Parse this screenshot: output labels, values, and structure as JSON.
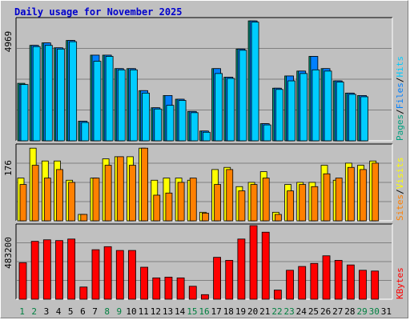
{
  "title": "Daily usage for November 2025",
  "colors": {
    "pages": "#00a080",
    "files": "#0080ff",
    "hits": "#00ccff",
    "visits": "#ffff00",
    "sites": "#ff8000",
    "kbytes": "#ff0000",
    "weekend": "#008040",
    "weekday": "#000000"
  },
  "chart_data": [
    {
      "type": "bar",
      "panel": "hits-files-pages",
      "y_max_label": "4969",
      "ylim": [
        0,
        4969
      ],
      "side_label": {
        "pages": "Pages",
        "files": "Files",
        "hits": "Hits",
        "sep": "/"
      },
      "categories": [
        "1",
        "2",
        "3",
        "4",
        "5",
        "6",
        "7",
        "8",
        "9",
        "10",
        "11",
        "12",
        "13",
        "14",
        "15",
        "16",
        "17",
        "18",
        "19",
        "20",
        "21",
        "22",
        "23",
        "24",
        "25",
        "26",
        "27",
        "28",
        "29",
        "30",
        "31"
      ],
      "series": [
        {
          "name": "Pages",
          "values": [
            2350,
            3900,
            4000,
            3800,
            4100,
            800,
            3500,
            3500,
            2950,
            2950,
            2050,
            1350,
            1850,
            1700,
            1200,
            400,
            2950,
            2600,
            3750,
            4900,
            700,
            2150,
            2650,
            2850,
            3450,
            2950,
            2450,
            1950,
            1850,
            0,
            0
          ]
        },
        {
          "name": "Files",
          "values": [
            2300,
            3900,
            4000,
            3800,
            4100,
            800,
            3500,
            3500,
            2950,
            2950,
            2050,
            1350,
            1850,
            1700,
            1200,
            400,
            2950,
            2600,
            3750,
            4900,
            700,
            2150,
            2650,
            2850,
            3450,
            2950,
            2450,
            1950,
            1850,
            0,
            0
          ]
        },
        {
          "name": "Hits",
          "values": [
            2300,
            3850,
            3900,
            3750,
            4050,
            750,
            3250,
            3450,
            2900,
            2900,
            1950,
            1300,
            1450,
            1650,
            1150,
            350,
            2750,
            2550,
            3700,
            4850,
            650,
            2100,
            2450,
            2750,
            2900,
            2850,
            2400,
            1900,
            1800,
            0,
            0
          ]
        }
      ]
    },
    {
      "type": "bar",
      "panel": "visits-sites",
      "y_max_label": "176",
      "ylim": [
        0,
        176
      ],
      "side_label": {
        "sites": "Sites",
        "visits": "Visits",
        "sep": "/"
      },
      "categories": [
        "1",
        "2",
        "3",
        "4",
        "5",
        "6",
        "7",
        "8",
        "9",
        "10",
        "11",
        "12",
        "13",
        "14",
        "15",
        "16",
        "17",
        "18",
        "19",
        "20",
        "21",
        "22",
        "23",
        "24",
        "25",
        "26",
        "27",
        "28",
        "29",
        "30",
        "31"
      ],
      "series": [
        {
          "name": "Visits",
          "values": [
            100,
            170,
            140,
            140,
            95,
            15,
            100,
            145,
            150,
            150,
            170,
            95,
            100,
            100,
            95,
            20,
            120,
            125,
            80,
            90,
            115,
            20,
            85,
            90,
            90,
            130,
            95,
            135,
            130,
            140,
            0
          ]
        },
        {
          "name": "Sites",
          "values": [
            85,
            130,
            100,
            120,
            90,
            15,
            100,
            130,
            150,
            130,
            170,
            60,
            65,
            90,
            100,
            18,
            85,
            120,
            70,
            85,
            100,
            15,
            70,
            85,
            80,
            110,
            100,
            125,
            120,
            135,
            0
          ]
        }
      ]
    },
    {
      "type": "bar",
      "panel": "kbytes",
      "y_max_label": "483200",
      "ylim": [
        0,
        483200
      ],
      "side_label": {
        "kbytes": "KBytes"
      },
      "categories": [
        "1",
        "2",
        "3",
        "4",
        "5",
        "6",
        "7",
        "8",
        "9",
        "10",
        "11",
        "12",
        "13",
        "14",
        "15",
        "16",
        "17",
        "18",
        "19",
        "20",
        "21",
        "22",
        "23",
        "24",
        "25",
        "26",
        "27",
        "28",
        "29",
        "30",
        "31"
      ],
      "series": [
        {
          "name": "KBytes",
          "values": [
            240000,
            380000,
            390000,
            385000,
            395000,
            80000,
            325000,
            345000,
            320000,
            320000,
            210000,
            140000,
            145000,
            140000,
            85000,
            30000,
            275000,
            255000,
            395000,
            483200,
            440000,
            60000,
            190000,
            215000,
            235000,
            285000,
            255000,
            225000,
            190000,
            185000,
            0
          ]
        }
      ]
    }
  ],
  "x_ticks": [
    "1",
    "2",
    "3",
    "4",
    "5",
    "6",
    "7",
    "8",
    "9",
    "10",
    "11",
    "12",
    "13",
    "14",
    "15",
    "16",
    "17",
    "18",
    "19",
    "20",
    "21",
    "22",
    "23",
    "24",
    "25",
    "26",
    "27",
    "28",
    "29",
    "30",
    "31"
  ],
  "weekend_days": [
    "1",
    "2",
    "8",
    "9",
    "15",
    "16",
    "22",
    "23",
    "29",
    "30"
  ]
}
